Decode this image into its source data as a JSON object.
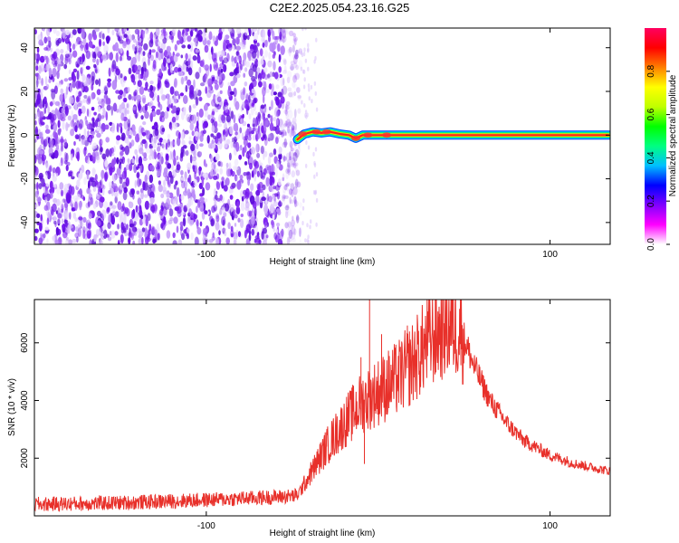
{
  "title": "C2E2.2025.054.23.16.G25",
  "chart_data": [
    {
      "type": "heatmap",
      "xlabel": "Height of straight line (km)",
      "ylabel": "Frequency (Hz)",
      "xlim": [
        -200,
        135
      ],
      "ylim": [
        -50,
        49
      ],
      "xticks": [
        -100,
        100
      ],
      "yticks": [
        -40,
        -20,
        0,
        20,
        40
      ],
      "colorbar": {
        "label": "Normalized spectral amplitude",
        "range": [
          0,
          1
        ],
        "ticks": [
          0.0,
          0.2,
          0.4,
          0.6,
          0.8
        ],
        "tick_labels": [
          "0.0",
          "0.2",
          "0.4",
          "0.6",
          "0.8"
        ],
        "colormap": [
          "#ffffff",
          "#ff00ff",
          "#8000ff",
          "#0000ff",
          "#00c0ff",
          "#00ff80",
          "#00ff00",
          "#c0ff00",
          "#ffff00",
          "#ff8000",
          "#ff0000",
          "#ff0060"
        ]
      },
      "noise_region": {
        "x_start": -200,
        "x_end": -45,
        "amplitude": 0.2
      },
      "signal_track": [
        {
          "x": -47,
          "y": -2.0
        },
        {
          "x": -43,
          "y": 0.5
        },
        {
          "x": -38,
          "y": 1.5
        },
        {
          "x": -33,
          "y": 1.0
        },
        {
          "x": -28,
          "y": 1.5
        },
        {
          "x": -22,
          "y": 0.5
        },
        {
          "x": -17,
          "y": 0.0
        },
        {
          "x": -13,
          "y": -1.5
        },
        {
          "x": -9,
          "y": 0.0
        },
        {
          "x": 0,
          "y": 0.0
        },
        {
          "x": 50,
          "y": 0.0
        },
        {
          "x": 134,
          "y": 0.0
        }
      ],
      "grid": false
    },
    {
      "type": "line",
      "xlabel": "Height of straight line (km)",
      "ylabel": "SNR (10 * v/v)",
      "xlim": [
        -200,
        135
      ],
      "ylim": [
        0,
        7500
      ],
      "xticks": [
        -100,
        100
      ],
      "yticks": [
        2000,
        4000,
        6000
      ],
      "series_color": "#e8302a",
      "envelope": [
        {
          "x": -200,
          "y": 400
        },
        {
          "x": -150,
          "y": 450
        },
        {
          "x": -100,
          "y": 550
        },
        {
          "x": -60,
          "y": 650
        },
        {
          "x": -47,
          "y": 700
        },
        {
          "x": -40,
          "y": 1400
        },
        {
          "x": -30,
          "y": 2400
        },
        {
          "x": -20,
          "y": 3200
        },
        {
          "x": -10,
          "y": 3900
        },
        {
          "x": 0,
          "y": 4300
        },
        {
          "x": 10,
          "y": 4700
        },
        {
          "x": 20,
          "y": 5300
        },
        {
          "x": 30,
          "y": 6100
        },
        {
          "x": 40,
          "y": 6600
        },
        {
          "x": 48,
          "y": 6500
        },
        {
          "x": 55,
          "y": 5300
        },
        {
          "x": 65,
          "y": 4000
        },
        {
          "x": 75,
          "y": 3200
        },
        {
          "x": 85,
          "y": 2600
        },
        {
          "x": 100,
          "y": 2100
        },
        {
          "x": 115,
          "y": 1800
        },
        {
          "x": 135,
          "y": 1550
        }
      ],
      "spikes": [
        {
          "x": -5,
          "y": 7500
        },
        {
          "x": -10,
          "y": 5500
        },
        {
          "x": 2,
          "y": 6300
        },
        {
          "x": 17,
          "y": 6600
        },
        {
          "x": -8,
          "y": 1800
        },
        {
          "x": -30,
          "y": 2900
        },
        {
          "x": 35,
          "y": 6900
        },
        {
          "x": 42,
          "y": 7100
        }
      ],
      "grid": false
    }
  ]
}
